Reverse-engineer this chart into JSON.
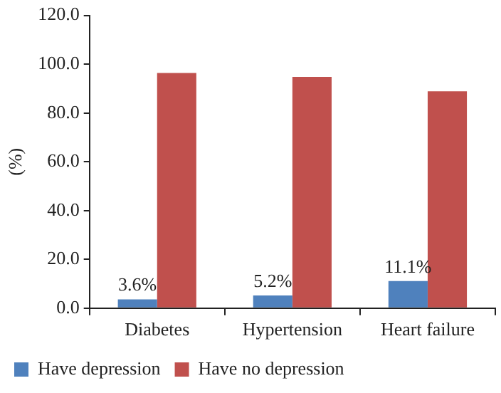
{
  "chart_data": {
    "type": "bar",
    "ylabel": "(%)",
    "categories": [
      "Diabetes",
      "Hypertension",
      "Heart failure"
    ],
    "series": [
      {
        "name": "Have depression",
        "color": "#4f81bd",
        "values": [
          3.6,
          5.2,
          11.1
        ],
        "value_labels": [
          "3.6%",
          "5.2%",
          "11.1%"
        ]
      },
      {
        "name": "Have no depression",
        "color": "#c0504d",
        "values": [
          96.4,
          94.8,
          88.9
        ]
      }
    ],
    "ylim": [
      0,
      120
    ],
    "yticks": [
      {
        "value": 0,
        "label": "0.0"
      },
      {
        "value": 20,
        "label": "20.0"
      },
      {
        "value": 40,
        "label": "40.0"
      },
      {
        "value": 60,
        "label": "60.0"
      },
      {
        "value": 80,
        "label": "80.0"
      },
      {
        "value": 100,
        "label": "100.0"
      },
      {
        "value": 120,
        "label": "120.0"
      }
    ],
    "grid": false,
    "legend": "bottom"
  }
}
